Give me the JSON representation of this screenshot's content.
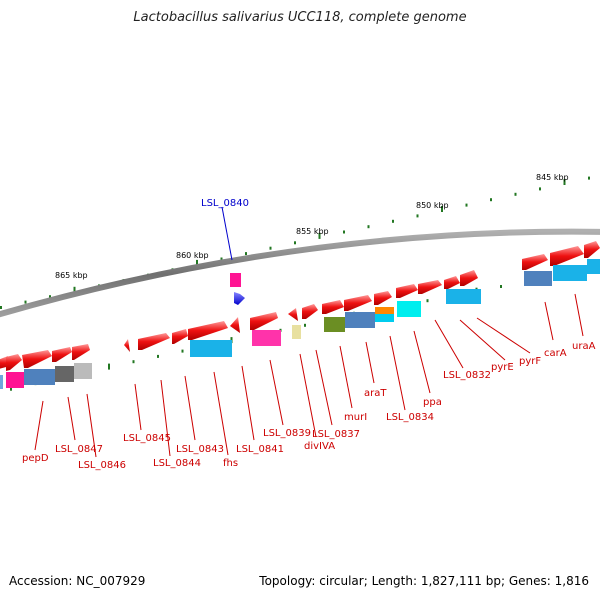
{
  "title": "Lactobacillus salivarius UCC118, complete genome",
  "footer": {
    "accession_label": "Accession:",
    "accession": "NC_007929",
    "topology_label": "Topology:",
    "topology": "circular;",
    "length_label": "Length:",
    "length": "1,827,111 bp;",
    "genes_label": "Genes:",
    "genes": "1,816"
  },
  "colors": {
    "forward_gene": "#ee1111",
    "reverse_gene": "#1111ee",
    "label_red": "#cc0000",
    "label_blue": "#0000cc",
    "backbone": "#888888",
    "tick": "#227722"
  },
  "scale_labels": [
    "865 kbp",
    "860 kbp",
    "855 kbp",
    "850 kbp",
    "845 kbp"
  ],
  "gene_labels": {
    "top": "LSL_0840",
    "bottom": [
      "pepD",
      "LSL_0847",
      "LSL_0846",
      "LSL_0845",
      "LSL_0844",
      "LSL_0843",
      "fhs",
      "LSL_0841",
      "LSL_0839",
      "divIVA",
      "LSL_0837",
      "murI",
      "araT",
      "LSL_0834",
      "ppa",
      "LSL_0832",
      "pyrE",
      "pyrF",
      "carA",
      "uraA"
    ]
  }
}
